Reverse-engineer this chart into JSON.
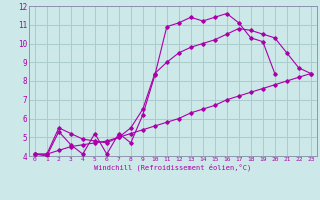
{
  "xlabel": "Windchill (Refroidissement éolien,°C)",
  "bg_color": "#cce8e8",
  "grid_color": "#aacccc",
  "line_color": "#aa00aa",
  "spine_color": "#8888aa",
  "xlim": [
    -0.5,
    23.5
  ],
  "ylim": [
    4,
    12
  ],
  "xticks": [
    0,
    1,
    2,
    3,
    4,
    5,
    6,
    7,
    8,
    9,
    10,
    11,
    12,
    13,
    14,
    15,
    16,
    17,
    18,
    19,
    20,
    21,
    22,
    23
  ],
  "yticks": [
    4,
    5,
    6,
    7,
    8,
    9,
    10,
    11,
    12
  ],
  "line1_x": [
    0,
    1,
    2,
    3,
    4,
    5,
    6,
    7,
    8,
    9,
    10,
    11,
    12,
    13,
    14,
    15,
    16,
    17,
    18,
    19,
    20
  ],
  "line1_y": [
    4.1,
    4.0,
    5.3,
    4.6,
    4.1,
    5.2,
    4.1,
    5.2,
    4.7,
    6.2,
    8.3,
    10.9,
    11.1,
    11.4,
    11.2,
    11.4,
    11.6,
    11.1,
    10.3,
    10.1,
    8.4
  ],
  "line2_x": [
    0,
    1,
    2,
    3,
    4,
    5,
    6,
    7,
    8,
    9,
    10,
    11,
    12,
    13,
    14,
    15,
    16,
    17,
    18,
    19,
    20,
    21,
    22,
    23
  ],
  "line2_y": [
    4.1,
    4.1,
    4.3,
    4.5,
    4.6,
    4.7,
    4.8,
    5.0,
    5.2,
    5.4,
    5.6,
    5.8,
    6.0,
    6.3,
    6.5,
    6.7,
    7.0,
    7.2,
    7.4,
    7.6,
    7.8,
    8.0,
    8.2,
    8.4
  ],
  "line3_x": [
    0,
    1,
    2,
    3,
    4,
    5,
    6,
    7,
    8,
    9,
    10,
    11,
    12,
    13,
    14,
    15,
    16,
    17,
    18,
    19,
    20,
    21,
    22,
    23
  ],
  "line3_y": [
    4.1,
    4.1,
    5.5,
    5.2,
    4.9,
    4.8,
    4.7,
    5.0,
    5.5,
    6.5,
    8.4,
    9.0,
    9.5,
    9.8,
    10.0,
    10.2,
    10.5,
    10.8,
    10.7,
    10.5,
    10.3,
    9.5,
    8.7,
    8.4
  ]
}
